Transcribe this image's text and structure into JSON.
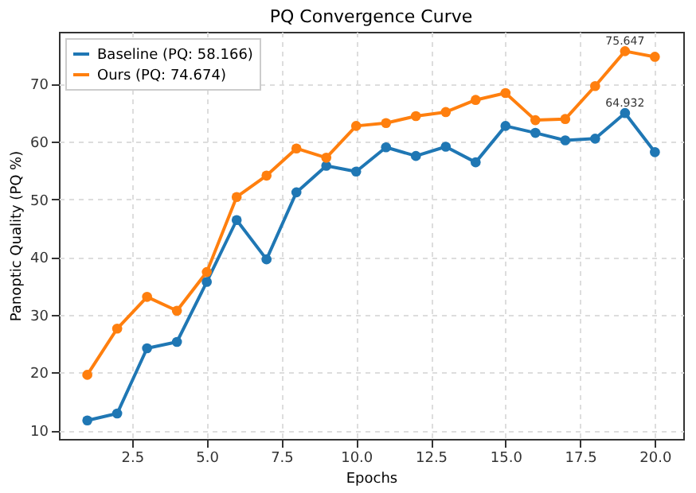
{
  "chart_data": {
    "type": "line",
    "title": "PQ Convergence Curve",
    "xlabel": "Epochs",
    "ylabel": "Panoptic Quality (PQ %)",
    "x": [
      1,
      2,
      3,
      4,
      5,
      6,
      7,
      8,
      9,
      10,
      11,
      12,
      13,
      14,
      15,
      16,
      17,
      18,
      19,
      20
    ],
    "series": [
      {
        "name": "Baseline (PQ: 58.166)",
        "color": "#1f77b4",
        "values": [
          11.7,
          12.9,
          24.2,
          25.3,
          35.7,
          46.4,
          39.6,
          51.2,
          55.8,
          54.8,
          59.0,
          57.5,
          59.1,
          56.4,
          62.7,
          61.5,
          60.2,
          60.5,
          64.932,
          58.166
        ]
      },
      {
        "name": "Ours (PQ: 74.674)",
        "color": "#ff7f0e",
        "values": [
          19.6,
          27.6,
          33.1,
          30.7,
          37.4,
          50.4,
          54.1,
          58.8,
          57.2,
          62.7,
          63.2,
          64.4,
          65.1,
          67.2,
          68.4,
          63.7,
          63.9,
          69.6,
          75.647,
          74.674
        ]
      }
    ],
    "annotations": [
      {
        "text": "64.932",
        "x": 19,
        "y": 64.932
      },
      {
        "text": "75.647",
        "x": 19,
        "y": 75.647
      }
    ],
    "xlim": [
      0.05,
      20.95
    ],
    "xticks": [
      {
        "value": 2.5,
        "label": "2.5"
      },
      {
        "value": 5,
        "label": "5.0"
      },
      {
        "value": 7.5,
        "label": "7.5"
      },
      {
        "value": 10,
        "label": "10.0"
      },
      {
        "value": 12.5,
        "label": "12.5"
      },
      {
        "value": 15,
        "label": "15.0"
      },
      {
        "value": 17.5,
        "label": "17.5"
      },
      {
        "value": 20,
        "label": "20.0"
      }
    ],
    "ylim": [
      8.5,
      79.0
    ],
    "yticks": [
      10,
      20,
      30,
      40,
      50,
      60,
      70
    ],
    "grid": true,
    "legend": "top left",
    "marker": "circle",
    "line_style": "solid"
  }
}
